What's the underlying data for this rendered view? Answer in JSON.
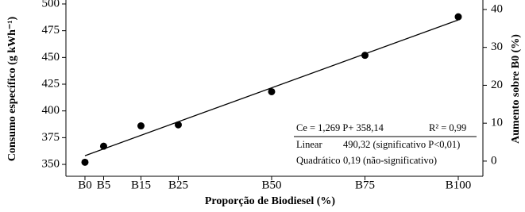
{
  "chart_data": {
    "type": "scatter",
    "x_label": "Proporção de Biodiesel (%)",
    "y_label": "Consumo específico (g kWh⁻¹)",
    "y2_label": "Aumento sobre B0 (%)",
    "x": [
      0,
      5,
      15,
      25,
      50,
      75,
      100
    ],
    "series": [
      {
        "color": "#000000",
        "values": [
          352,
          367,
          386,
          387,
          418,
          452,
          488
        ]
      }
    ],
    "fit": {
      "x": [
        0,
        100
      ],
      "values": [
        358.14,
        485.04
      ]
    },
    "xlim": [
      -5.1,
      106.6
    ],
    "xticks": [
      {
        "value": 0,
        "label": "B0"
      },
      {
        "value": 5,
        "label": "B5"
      },
      {
        "value": 15,
        "label": "B15"
      },
      {
        "value": 25,
        "label": "B25"
      },
      {
        "value": 50,
        "label": "B50"
      },
      {
        "value": 75,
        "label": "B75"
      },
      {
        "value": 100,
        "label": "B100"
      }
    ],
    "ylim": [
      338.9,
      503.7
    ],
    "yticks": [
      350,
      375,
      400,
      425,
      450,
      475,
      500
    ],
    "y2lim": [
      -4,
      42.5
    ],
    "y2ticks": [
      0,
      10,
      20,
      30,
      40
    ],
    "annotation": {
      "equation": "Ce = 1,269 P+ 358,14",
      "r2": "R² = 0,99",
      "rows": [
        [
          "Linear",
          "490,32 (significativo P<0,01)"
        ],
        [
          "Quadrático",
          "0,19 (não-significativo)"
        ]
      ]
    }
  }
}
